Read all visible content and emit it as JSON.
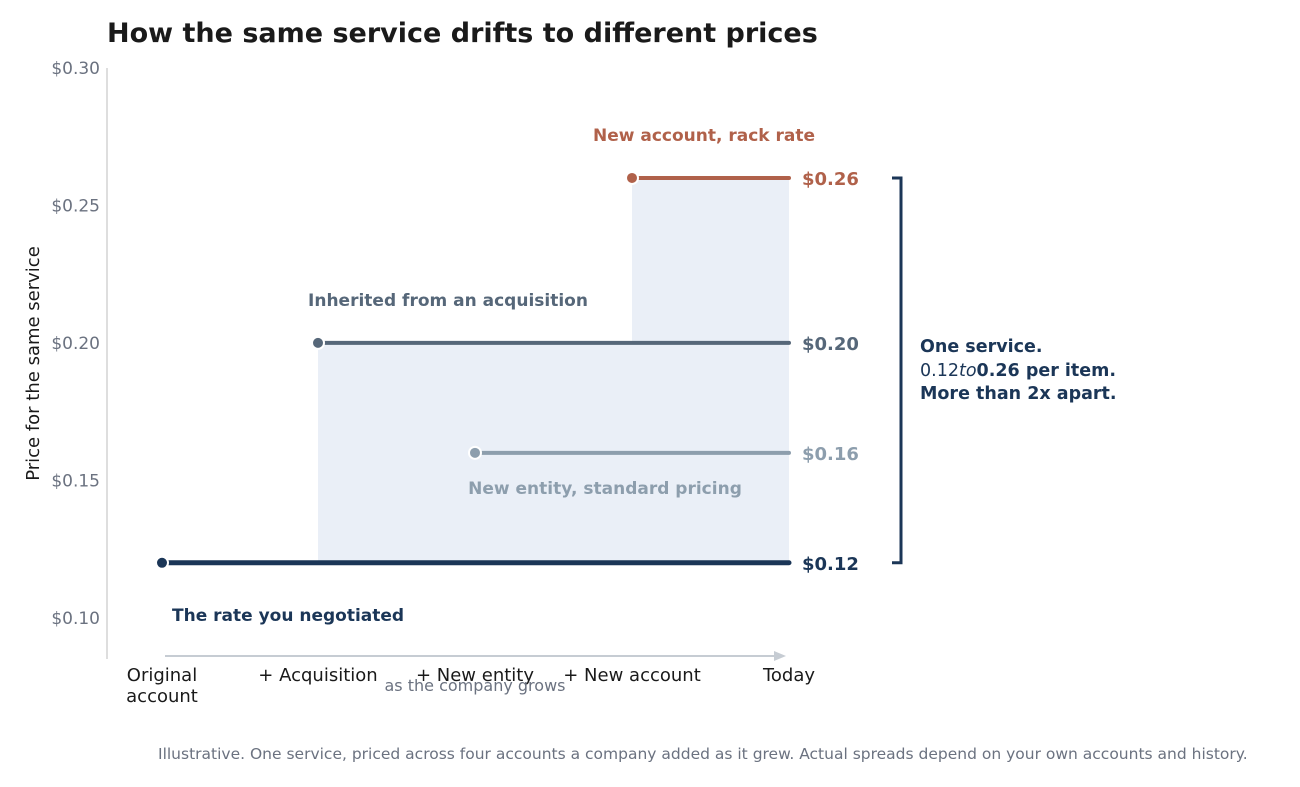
{
  "title": "How the same service drifts to different prices",
  "footnote": "Illustrative. One service, priced across four accounts a company added as it grew. Actual spreads depend on your own accounts and history.",
  "summary": {
    "line1": "One service.",
    "line2_a": "0.12",
    "line2_b": "to",
    "line2_c": "0.26 per item.",
    "line3": "More than 2x apart."
  },
  "colors": {
    "navy": "#1b3657",
    "slate": "#566779",
    "gray": "#8d9ead",
    "rust": "#b0614a",
    "band": "#eaeff7",
    "axis": "#d4d4d4",
    "tick": "#6b7280"
  },
  "chart_data": {
    "type": "line",
    "step": true,
    "title": "How the same service drifts to different prices",
    "xlabel": "as the company grows",
    "ylabel": "Price for the same service",
    "ylim": [
      0.085,
      0.3
    ],
    "yticks": [
      0.1,
      0.15,
      0.2,
      0.25,
      0.3
    ],
    "ytick_labels": [
      "$0.10",
      "$0.15",
      "$0.20",
      "$0.25",
      "$0.30"
    ],
    "categories": [
      "Original\naccount",
      "+ Acquisition",
      "+ New entity",
      "+ New account",
      "Today"
    ],
    "series": [
      {
        "name": "The rate you negotiated",
        "start": 0,
        "value": 0.12,
        "end_label": "$0.12",
        "color": "#1b3657"
      },
      {
        "name": "Inherited from an acquisition",
        "start": 1,
        "value": 0.2,
        "end_label": "$0.20",
        "color": "#566779"
      },
      {
        "name": "New entity, standard pricing",
        "start": 2,
        "value": 0.16,
        "end_label": "$0.16",
        "color": "#8d9ead"
      },
      {
        "name": "New account, rack rate",
        "start": 3,
        "value": 0.26,
        "end_label": "$0.26",
        "color": "#b0614a"
      }
    ],
    "grid": false,
    "legend": "none"
  }
}
